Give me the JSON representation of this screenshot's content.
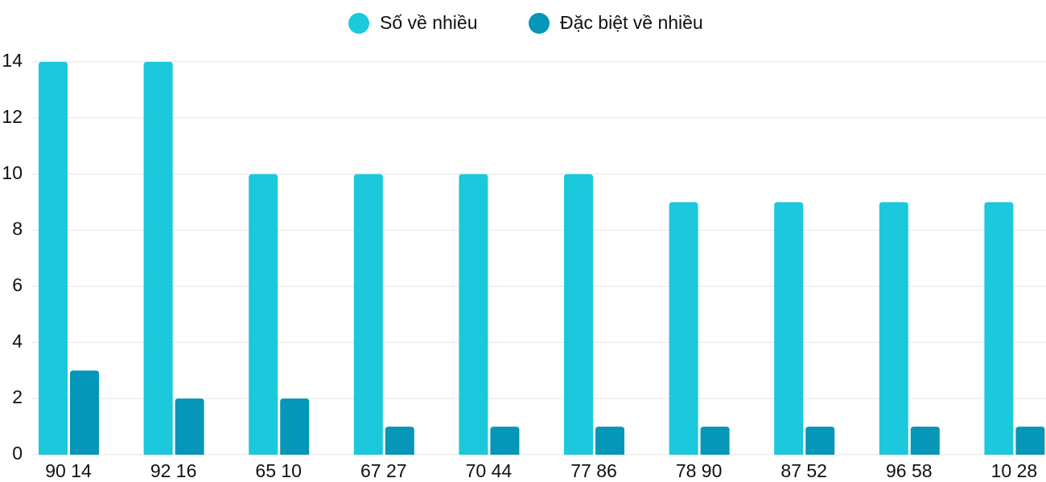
{
  "chart_data": {
    "type": "bar",
    "categories": [
      "90 14",
      "92 16",
      "65 10",
      "67 27",
      "70 44",
      "77 86",
      "78 90",
      "87 52",
      "96 58",
      "10 28"
    ],
    "series": [
      {
        "name": "Số về nhiều",
        "color": "#1bc8dc",
        "values": [
          14,
          14,
          10,
          10,
          10,
          10,
          9,
          9,
          9,
          9
        ]
      },
      {
        "name": "Đặc biệt về nhiều",
        "color": "#0596b8",
        "values": [
          3,
          2,
          2,
          1,
          1,
          1,
          1,
          1,
          1,
          1
        ]
      }
    ],
    "ylim": [
      0,
      14
    ],
    "yticks": [
      0,
      2,
      4,
      6,
      8,
      10,
      12,
      14
    ],
    "grid": true,
    "legend": "top"
  }
}
